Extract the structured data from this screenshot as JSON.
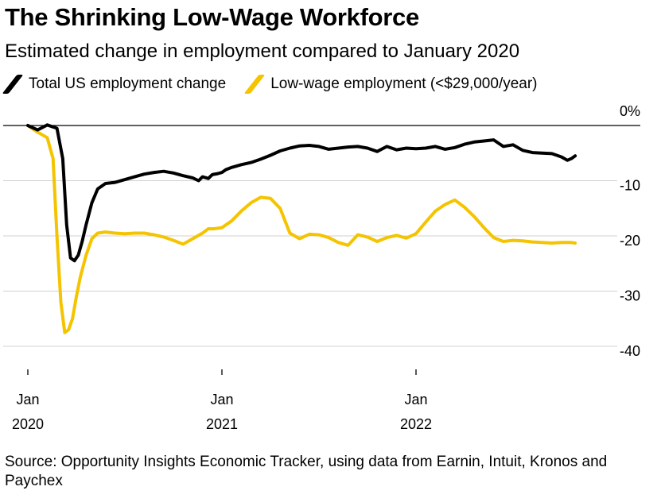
{
  "title": "The Shrinking Low-Wage Workforce",
  "subtitle": "Estimated change in employment compared to January 2020",
  "source": "Source: Opportunity Insights Economic Tracker, using data from Earnin, Intuit, Kronos and Paychex",
  "chart_data": {
    "type": "line",
    "ylim": [
      -40,
      0
    ],
    "xlim": [
      2020.0,
      2022.9
    ],
    "y_ticks": [
      {
        "value": 0,
        "label": "0%"
      },
      {
        "value": -10,
        "label": "-10"
      },
      {
        "value": -20,
        "label": "-20"
      },
      {
        "value": -30,
        "label": "-30"
      },
      {
        "value": -40,
        "label": "-40"
      }
    ],
    "x_ticks": [
      {
        "value": 2020.0,
        "label_top": "Jan",
        "label_bottom": "2020"
      },
      {
        "value": 2021.0,
        "label_top": "Jan",
        "label_bottom": "2021"
      },
      {
        "value": 2022.0,
        "label_top": "Jan",
        "label_bottom": "2022"
      }
    ],
    "grid": true,
    "legend": "top-left",
    "series": [
      {
        "name": "Total US employment change",
        "color": "#000000",
        "x": [
          2020.0,
          2020.05,
          2020.1,
          2020.15,
          2020.18,
          2020.2,
          2020.22,
          2020.24,
          2020.26,
          2020.28,
          2020.3,
          2020.33,
          2020.36,
          2020.4,
          2020.45,
          2020.5,
          2020.55,
          2020.6,
          2020.65,
          2020.7,
          2020.75,
          2020.8,
          2020.85,
          2020.88,
          2020.9,
          2020.93,
          2020.95,
          2020.98,
          2021.0,
          2021.02,
          2021.05,
          2021.1,
          2021.15,
          2021.2,
          2021.25,
          2021.3,
          2021.35,
          2021.4,
          2021.45,
          2021.5,
          2021.55,
          2021.6,
          2021.65,
          2021.7,
          2021.75,
          2021.8,
          2021.85,
          2021.9,
          2021.95,
          2022.0,
          2022.05,
          2022.1,
          2022.15,
          2022.2,
          2022.25,
          2022.3,
          2022.35,
          2022.4,
          2022.45,
          2022.5,
          2022.55,
          2022.6,
          2022.65,
          2022.7,
          2022.75,
          2022.78,
          2022.8,
          2022.82
        ],
        "values": [
          0,
          -0.8,
          0.1,
          -0.5,
          -6,
          -18,
          -24,
          -24.5,
          -23.5,
          -21,
          -18,
          -14,
          -11.5,
          -10.5,
          -10.3,
          -9.8,
          -9.3,
          -8.8,
          -8.5,
          -8.3,
          -8.6,
          -9.1,
          -9.5,
          -10,
          -9.3,
          -9.6,
          -8.9,
          -8.7,
          -8.5,
          -8,
          -7.6,
          -7.1,
          -6.7,
          -6.1,
          -5.4,
          -4.6,
          -4.1,
          -3.7,
          -3.6,
          -3.8,
          -4.3,
          -4.1,
          -3.9,
          -3.8,
          -4.1,
          -4.7,
          -3.8,
          -4.4,
          -4.1,
          -4.2,
          -4.1,
          -3.8,
          -4.3,
          -4.0,
          -3.4,
          -3.0,
          -2.8,
          -2.6,
          -3.8,
          -3.5,
          -4.5,
          -4.9,
          -5.0,
          -5.1,
          -5.7,
          -6.3,
          -6.0,
          -5.5
        ]
      },
      {
        "name": "Low-wage employment (<$29,000/year)",
        "color": "#f5c400",
        "x": [
          2020.0,
          2020.05,
          2020.1,
          2020.13,
          2020.15,
          2020.17,
          2020.19,
          2020.21,
          2020.23,
          2020.25,
          2020.27,
          2020.3,
          2020.33,
          2020.36,
          2020.4,
          2020.45,
          2020.5,
          2020.55,
          2020.6,
          2020.65,
          2020.7,
          2020.75,
          2020.8,
          2020.85,
          2020.9,
          2020.93,
          2020.96,
          2021.0,
          2021.05,
          2021.1,
          2021.15,
          2021.2,
          2021.25,
          2021.3,
          2021.35,
          2021.4,
          2021.45,
          2021.5,
          2021.55,
          2021.6,
          2021.65,
          2021.7,
          2021.75,
          2021.8,
          2021.85,
          2021.9,
          2021.95,
          2022.0,
          2022.05,
          2022.1,
          2022.15,
          2022.2,
          2022.25,
          2022.3,
          2022.35,
          2022.4,
          2022.45,
          2022.5,
          2022.55,
          2022.6,
          2022.65,
          2022.7,
          2022.75,
          2022.8,
          2022.82
        ],
        "values": [
          0,
          -1.2,
          -2.2,
          -6,
          -20,
          -32,
          -37.5,
          -37,
          -35,
          -31,
          -27.5,
          -23.5,
          -20.5,
          -19.5,
          -19.3,
          -19.5,
          -19.6,
          -19.5,
          -19.5,
          -19.8,
          -20.2,
          -20.8,
          -21.5,
          -20.5,
          -19.5,
          -18.7,
          -18.7,
          -18.5,
          -17.3,
          -15.5,
          -14,
          -13,
          -13.2,
          -15,
          -19.5,
          -20.5,
          -19.7,
          -19.8,
          -20.3,
          -21.2,
          -21.7,
          -19.8,
          -20.2,
          -21,
          -20.3,
          -19.9,
          -20.4,
          -19.6,
          -17.5,
          -15.5,
          -14.3,
          -13.5,
          -14.8,
          -16.5,
          -18.5,
          -20.3,
          -21.0,
          -20.8,
          -20.9,
          -21.1,
          -21.2,
          -21.3,
          -21.2,
          -21.2,
          -21.3
        ]
      }
    ]
  }
}
